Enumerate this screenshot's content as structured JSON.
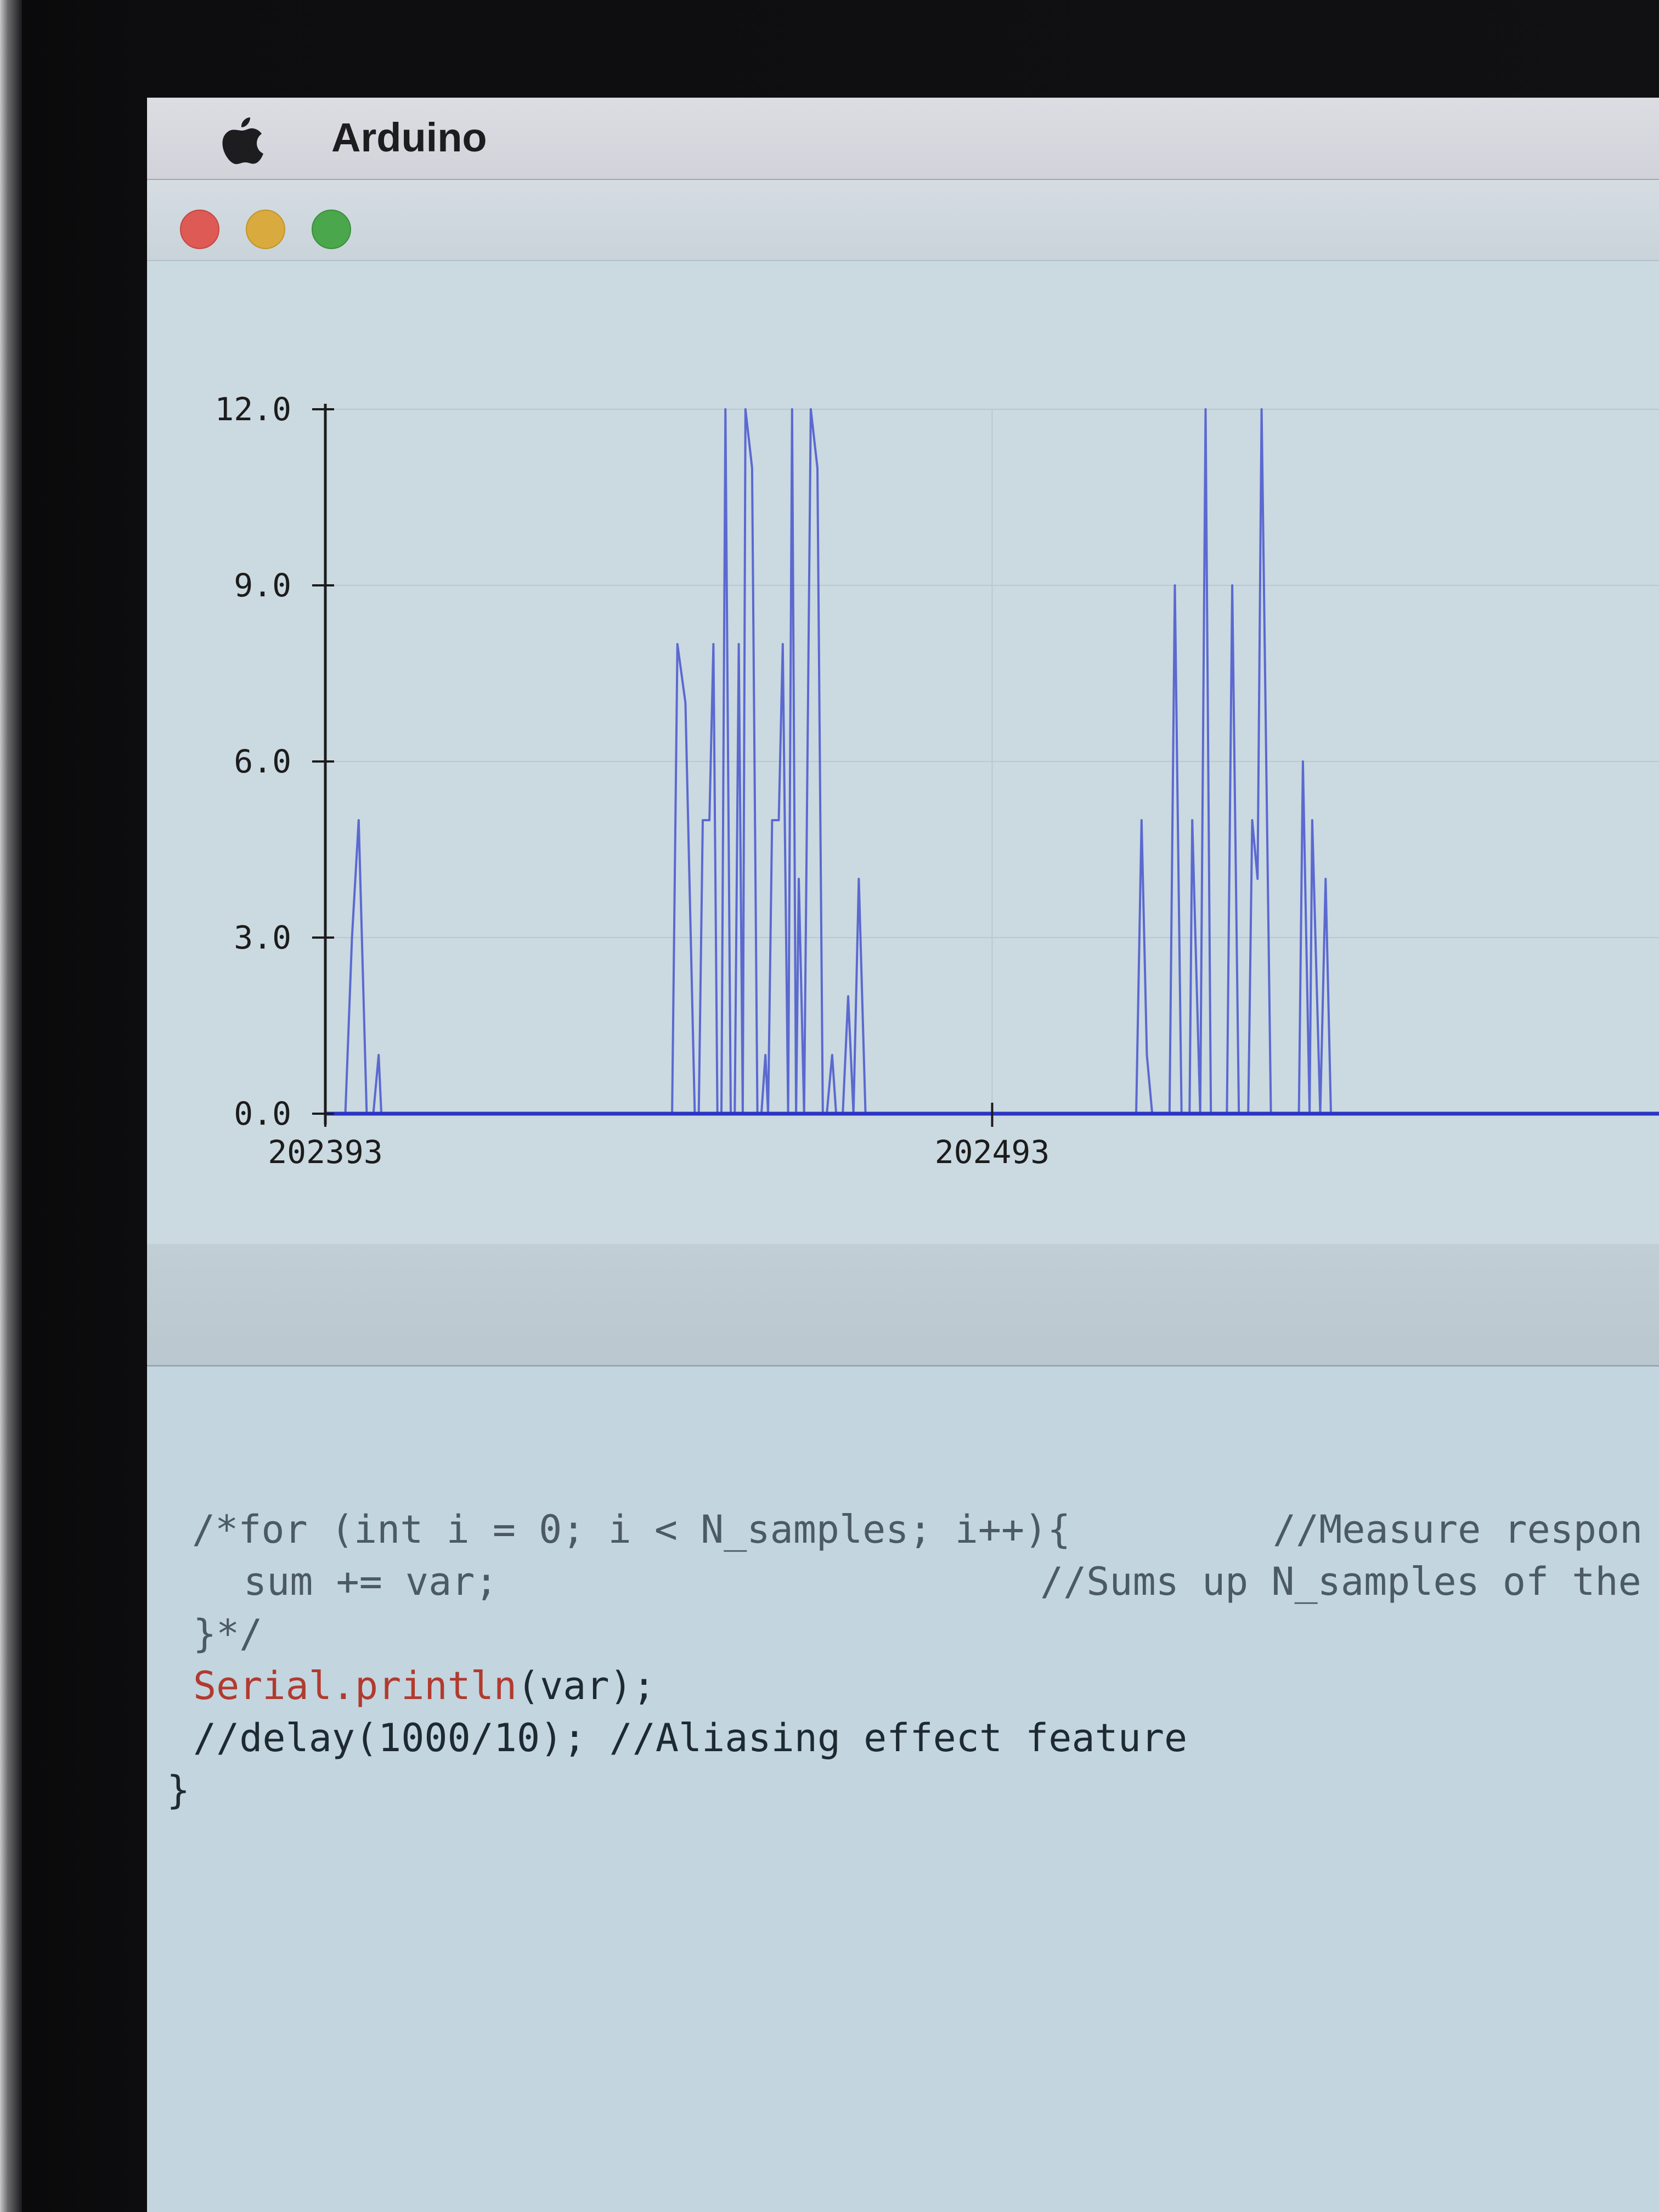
{
  "menubar": {
    "app_title": "Arduino",
    "apple_icon": "apple-logo-icon"
  },
  "window": {
    "buttons": [
      {
        "name": "close",
        "color": "#de5a55"
      },
      {
        "name": "minimize",
        "color": "#d9ab3e"
      },
      {
        "name": "zoom",
        "color": "#4aa74b"
      }
    ]
  },
  "chart_data": {
    "type": "line",
    "title": "",
    "xlabel": "",
    "ylabel": "",
    "ylim": [
      0,
      12
    ],
    "xlim": [
      0,
      100
    ],
    "y_ticks": [
      "0.0",
      "3.0",
      "6.0",
      "9.0",
      "12.0"
    ],
    "x_tick_labels": [
      "202393",
      "202493"
    ],
    "grid": true,
    "line_color": "#3f4ccc",
    "series": [
      {
        "values": [
          [
            0,
            0
          ],
          [
            1.5,
            0
          ],
          [
            2,
            3
          ],
          [
            2.5,
            5
          ],
          [
            3.1,
            0
          ],
          [
            3.6,
            0
          ],
          [
            4,
            1
          ],
          [
            4.2,
            0
          ],
          [
            26,
            0
          ],
          [
            26.4,
            8
          ],
          [
            27,
            7
          ],
          [
            27.7,
            0
          ],
          [
            28,
            0
          ],
          [
            28.3,
            5
          ],
          [
            28.8,
            5
          ],
          [
            29.1,
            8
          ],
          [
            29.4,
            0
          ],
          [
            29.7,
            0
          ],
          [
            30,
            12
          ],
          [
            30.4,
            0
          ],
          [
            30.7,
            0
          ],
          [
            31,
            8
          ],
          [
            31.3,
            0
          ],
          [
            31.5,
            12
          ],
          [
            32,
            11
          ],
          [
            32.4,
            0
          ],
          [
            32.7,
            0
          ],
          [
            33,
            1
          ],
          [
            33.2,
            0
          ],
          [
            33.5,
            5
          ],
          [
            34,
            5
          ],
          [
            34.3,
            8
          ],
          [
            34.7,
            0
          ],
          [
            35,
            12
          ],
          [
            35.3,
            0
          ],
          [
            35.5,
            4
          ],
          [
            35.9,
            0
          ],
          [
            36.4,
            12
          ],
          [
            36.9,
            11
          ],
          [
            37.3,
            0
          ],
          [
            37.6,
            0
          ],
          [
            38,
            1
          ],
          [
            38.3,
            0
          ],
          [
            38.8,
            0
          ],
          [
            39.2,
            2
          ],
          [
            39.6,
            0
          ],
          [
            40,
            4
          ],
          [
            40.5,
            0
          ],
          [
            100,
            0
          ]
        ]
      },
      {
        "values": [
          [
            60,
            0
          ],
          [
            60.8,
            0
          ],
          [
            61.2,
            5
          ],
          [
            61.6,
            1
          ],
          [
            62,
            0
          ],
          [
            63.3,
            0
          ],
          [
            63.7,
            9
          ],
          [
            64.2,
            0
          ],
          [
            64.8,
            0
          ],
          [
            65,
            5
          ],
          [
            65.6,
            0
          ],
          [
            66,
            12
          ],
          [
            66.4,
            0
          ],
          [
            67.6,
            0
          ],
          [
            68,
            9
          ],
          [
            68.5,
            0
          ],
          [
            69.2,
            0
          ],
          [
            69.5,
            5
          ],
          [
            69.9,
            4
          ],
          [
            70.2,
            12
          ],
          [
            70.9,
            0
          ],
          [
            73,
            0
          ],
          [
            73.3,
            6
          ],
          [
            73.8,
            0
          ],
          [
            74,
            5
          ],
          [
            74.6,
            0
          ],
          [
            75,
            4
          ],
          [
            75.4,
            0
          ],
          [
            100,
            0
          ]
        ]
      }
    ]
  },
  "editor": {
    "lines": [
      {
        "text": "/*for (int i = 0; i < N_samples; i++){",
        "kind": "comment"
      },
      {
        "text": "//Measure respon",
        "kind": "comment"
      },
      {
        "text": "sum += var;",
        "kind": "comment"
      },
      {
        "text": "//Sums up N_samples of the",
        "kind": "comment"
      },
      {
        "text": "}*/",
        "kind": "comment"
      },
      {
        "text": "Serial.println",
        "kind": "keyword"
      },
      {
        "text": "(var);",
        "kind": "code"
      },
      {
        "text": "//delay(1000/10); //Aliasing effect feature",
        "kind": "code"
      },
      {
        "text": "}",
        "kind": "code"
      }
    ]
  }
}
